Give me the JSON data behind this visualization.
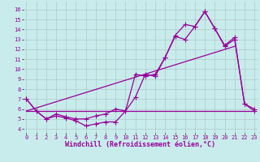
{
  "xlabel": "Windchill (Refroidissement éolien,°C)",
  "bg_color": "#c8ecec",
  "grid_color": "#b0c8c8",
  "line_color": "#990099",
  "x_ticks": [
    0,
    1,
    2,
    3,
    4,
    5,
    6,
    7,
    8,
    9,
    10,
    11,
    12,
    13,
    14,
    15,
    16,
    17,
    18,
    19,
    20,
    21,
    22,
    23
  ],
  "y_ticks": [
    4,
    5,
    6,
    7,
    8,
    9,
    10,
    11,
    12,
    13,
    14,
    15,
    16
  ],
  "ylim": [
    3.6,
    16.8
  ],
  "xlim": [
    -0.3,
    23.3
  ],
  "line1_x": [
    0,
    1,
    2,
    3,
    4,
    5,
    6,
    7,
    8,
    9,
    10,
    11,
    12,
    13,
    14,
    15,
    16,
    17,
    18,
    19,
    20,
    21,
    22,
    23
  ],
  "line1_y": [
    7.0,
    5.8,
    5.0,
    5.3,
    5.1,
    4.8,
    4.3,
    4.5,
    4.7,
    4.7,
    5.8,
    7.2,
    9.5,
    9.3,
    11.2,
    13.3,
    13.0,
    14.3,
    15.8,
    14.1,
    12.3,
    13.0,
    6.5,
    5.8
  ],
  "line2_x": [
    0,
    1,
    2,
    3,
    4,
    5,
    6,
    7,
    8,
    9,
    10,
    11,
    12,
    13,
    14,
    15,
    16,
    17,
    18,
    19,
    20,
    21,
    22,
    23
  ],
  "line2_y": [
    7.0,
    5.8,
    5.0,
    5.5,
    5.2,
    5.0,
    5.0,
    5.3,
    5.5,
    6.0,
    5.8,
    9.5,
    9.3,
    9.5,
    11.2,
    13.4,
    14.5,
    14.3,
    15.8,
    14.1,
    12.4,
    13.2,
    6.5,
    6.0
  ],
  "line3_x": [
    0,
    23
  ],
  "line3_y": [
    5.8,
    5.8
  ],
  "line4_x": [
    0,
    21
  ],
  "line4_y": [
    5.8,
    12.3
  ],
  "markersize": 3,
  "linewidth": 0.9,
  "tick_fontsize": 5.0,
  "label_fontsize": 6.0
}
